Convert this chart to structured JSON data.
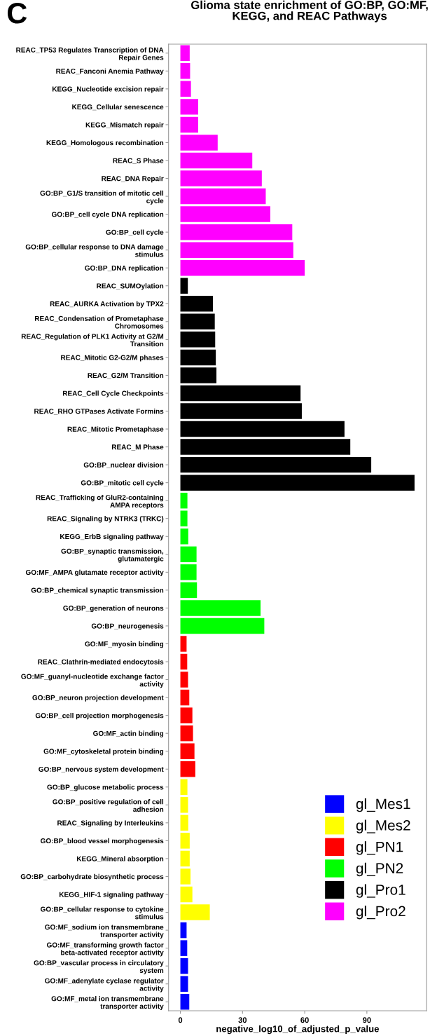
{
  "chart_data": {
    "type": "bar",
    "orientation": "horizontal",
    "title": "Glioma state enrichment of GO:BP, GO:MF,\nKEGG, and REAC Pathways",
    "xlabel": "negative_log10_of_adjusted_p_value",
    "annotations": [
      "C"
    ],
    "categories": [
      "REAC_TP53 Regulates Transcription of DNA Repair Genes",
      "REAC_Fanconi Anemia Pathway",
      "KEGG_Nucleotide excision repair",
      "KEGG_Cellular senescence",
      "KEGG_Mismatch repair",
      "KEGG_Homologous recombination",
      "REAC_S Phase",
      "REAC_DNA Repair",
      "GO:BP_G1/S transition of mitotic cell cycle",
      "GO:BP_cell cycle DNA replication",
      "GO:BP_cell cycle",
      "GO:BP_cellular response to DNA damage stimulus",
      "GO:BP_DNA replication",
      "REAC_SUMOylation",
      "REAC_AURKA Activation by TPX2",
      "REAC_Condensation of Prometaphase Chromosomes",
      "REAC_Regulation of PLK1 Activity at G2/M Transition",
      "REAC_Mitotic G2-G2/M phases",
      "REAC_G2/M Transition",
      "REAC_Cell Cycle Checkpoints",
      "REAC_RHO GTPases Activate Formins",
      "REAC_Mitotic Prometaphase",
      "REAC_M Phase",
      "GO:BP_nuclear division",
      "GO:BP_mitotic cell cycle",
      "REAC_Trafficking of GluR2-containing AMPA receptors",
      "REAC_Signaling by NTRK3 (TRKC)",
      "KEGG_ErbB signaling pathway",
      "GO:BP_synaptic transmission, glutamatergic",
      "GO:MF_AMPA glutamate receptor activity",
      "GO:BP_chemical synaptic transmission",
      "GO:BP_generation of neurons",
      "GO:BP_neurogenesis",
      "GO:MF_myosin binding",
      "REAC_Clathrin-mediated endocytosis",
      "GO:MF_guanyl-nucleotide exchange factor activity",
      "GO:BP_neuron projection development",
      "GO:BP_cell projection morphogenesis",
      "GO:MF_actin binding",
      "GO:MF_cytoskeletal protein binding",
      "GO:BP_nervous system development",
      "GO:BP_glucose metabolic process",
      "GO:BP_positive regulation of cell adhesion",
      "REAC_Signaling by Interleukins",
      "GO:BP_blood vessel morphogenesis",
      "KEGG_Mineral absorption",
      "GO:BP_carbohydrate biosynthetic process",
      "KEGG_HIF-1 signaling pathway",
      "GO:BP_cellular response to cytokine stimulus",
      "GO:MF_sodium ion transmembrane transporter activity",
      "GO:MF_transforming growth factor beta-activated receptor activity",
      "GO:BP_vascular process in circulatory system",
      "GO:MF_adenylate cyclase regulator activity",
      "GO:MF_metal ion transmembrane transporter activity"
    ],
    "series": [
      {
        "name": "gl_Mes1",
        "color": "#0000ff",
        "values": [
          null,
          null,
          null,
          null,
          null,
          null,
          null,
          null,
          null,
          null,
          null,
          null,
          null,
          null,
          null,
          null,
          null,
          null,
          null,
          null,
          null,
          null,
          null,
          null,
          null,
          null,
          null,
          null,
          null,
          null,
          null,
          null,
          null,
          null,
          null,
          null,
          null,
          null,
          null,
          null,
          null,
          null,
          null,
          null,
          null,
          null,
          null,
          null,
          null,
          3.0,
          3.3,
          3.7,
          3.7,
          4.3
        ]
      },
      {
        "name": "gl_Mes2",
        "color": "#ffff00",
        "values": [
          null,
          null,
          null,
          null,
          null,
          null,
          null,
          null,
          null,
          null,
          null,
          null,
          null,
          null,
          null,
          null,
          null,
          null,
          null,
          null,
          null,
          null,
          null,
          null,
          null,
          null,
          null,
          null,
          null,
          null,
          null,
          null,
          null,
          null,
          null,
          null,
          null,
          null,
          null,
          null,
          null,
          3.4,
          3.7,
          3.8,
          4.5,
          4.5,
          4.9,
          5.8,
          14.2,
          null,
          null,
          null,
          null,
          null
        ]
      },
      {
        "name": "gl_PN1",
        "color": "#ff0000",
        "values": [
          null,
          null,
          null,
          null,
          null,
          null,
          null,
          null,
          null,
          null,
          null,
          null,
          null,
          null,
          null,
          null,
          null,
          null,
          null,
          null,
          null,
          null,
          null,
          null,
          null,
          null,
          null,
          null,
          null,
          null,
          null,
          null,
          null,
          3.0,
          3.3,
          3.7,
          4.3,
          5.8,
          6.1,
          6.8,
          7.2,
          null,
          null,
          null,
          null,
          null,
          null,
          null,
          null,
          null,
          null,
          null,
          null,
          null
        ]
      },
      {
        "name": "gl_PN2",
        "color": "#00ff00",
        "values": [
          null,
          null,
          null,
          null,
          null,
          null,
          null,
          null,
          null,
          null,
          null,
          null,
          null,
          null,
          null,
          null,
          null,
          null,
          null,
          null,
          null,
          null,
          null,
          null,
          null,
          3.4,
          3.4,
          3.8,
          7.8,
          7.8,
          8.0,
          38.7,
          40.5,
          null,
          null,
          null,
          null,
          null,
          null,
          null,
          null,
          null,
          null,
          null,
          null,
          null,
          null,
          null,
          null,
          null,
          null,
          null,
          null,
          null
        ]
      },
      {
        "name": "gl_Pro1",
        "color": "#000000",
        "values": [
          null,
          null,
          null,
          null,
          null,
          null,
          null,
          null,
          null,
          null,
          null,
          null,
          null,
          3.6,
          15.7,
          16.6,
          16.8,
          17.1,
          17.4,
          58.0,
          58.6,
          79.2,
          82.0,
          92.1,
          113,
          null,
          null,
          null,
          null,
          null,
          null,
          null,
          null,
          null,
          null,
          null,
          null,
          null,
          null,
          null,
          null,
          null,
          null,
          null,
          null,
          null,
          null,
          null,
          null,
          null,
          null,
          null,
          null,
          null
        ]
      },
      {
        "name": "gl_Pro2",
        "color": "#ff00ff",
        "values": [
          4.5,
          4.7,
          5.1,
          8.6,
          8.6,
          18.0,
          34.7,
          39.3,
          41.2,
          43.4,
          54.0,
          54.5,
          60.0,
          null,
          null,
          null,
          null,
          null,
          null,
          null,
          null,
          null,
          null,
          null,
          null,
          null,
          null,
          null,
          null,
          null,
          null,
          null,
          null,
          null,
          null,
          null,
          null,
          null,
          null,
          null,
          null,
          null,
          null,
          null,
          null,
          null,
          null,
          null,
          null,
          null,
          null,
          null,
          null,
          null
        ]
      }
    ],
    "xlim": [
      -5.7,
      118.8
    ],
    "xticks": [
      0,
      30,
      60,
      90
    ],
    "legend": "bottom right",
    "grid": false
  }
}
